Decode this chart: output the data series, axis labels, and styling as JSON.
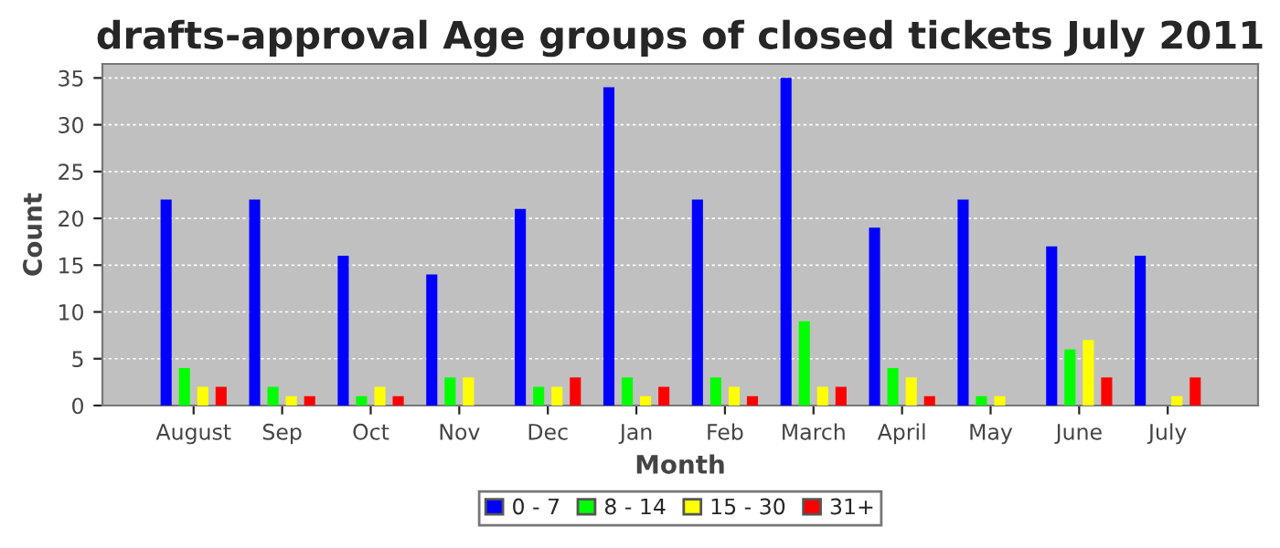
{
  "chart_data": {
    "type": "bar",
    "title": "drafts-approval Age groups of closed tickets July 2011",
    "xlabel": "Month",
    "ylabel": "Count",
    "categories": [
      "August",
      "Sep",
      "Oct",
      "Nov",
      "Dec",
      "Jan",
      "Feb",
      "March",
      "April",
      "May",
      "June",
      "July"
    ],
    "series": [
      {
        "name": "0 - 7",
        "color": "#0000ff",
        "values": [
          22,
          22,
          16,
          14,
          21,
          34,
          22,
          35,
          19,
          22,
          17,
          16
        ]
      },
      {
        "name": "8 - 14",
        "color": "#00ff00",
        "values": [
          4,
          2,
          1,
          3,
          2,
          3,
          3,
          9,
          4,
          1,
          6,
          0
        ]
      },
      {
        "name": "15 - 30",
        "color": "#ffff00",
        "values": [
          2,
          1,
          2,
          3,
          2,
          1,
          2,
          2,
          3,
          1,
          7,
          1
        ]
      },
      {
        "name": "31+",
        "color": "#ff0000",
        "values": [
          2,
          1,
          1,
          0,
          3,
          2,
          1,
          2,
          1,
          0,
          3,
          3
        ]
      }
    ],
    "ylim": [
      0,
      36.5
    ],
    "yticks": [
      0,
      5,
      10,
      15,
      20,
      25,
      30,
      35
    ],
    "grid": "y",
    "legend": "bottom"
  }
}
